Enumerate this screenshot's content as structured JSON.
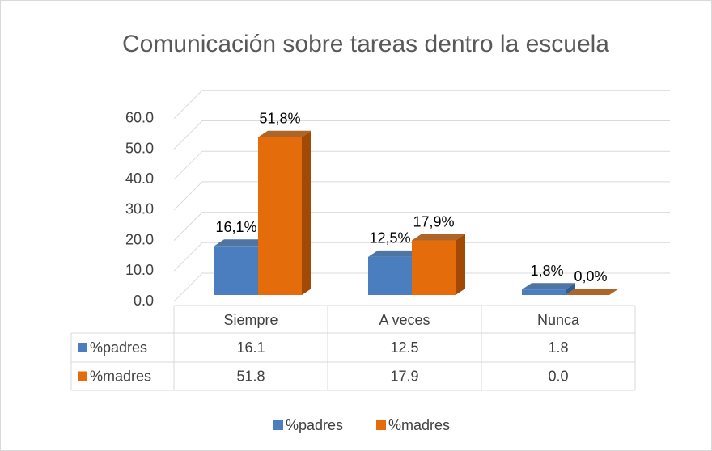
{
  "chart_data": {
    "type": "bar3d",
    "title": "Comunicación sobre  tareas dentro la escuela",
    "categories": [
      "Siempre",
      "A veces",
      "Nunca"
    ],
    "series": [
      {
        "name": "%padres",
        "color": "#4a7ebf",
        "side": "#2f5d94",
        "values": [
          16.1,
          12.5,
          1.8
        ],
        "value_labels": [
          "16,1%",
          "12,5%",
          "1,8%"
        ],
        "table_labels": [
          "16.1",
          "12.5",
          "1.8"
        ]
      },
      {
        "name": "%madres",
        "color": "#e46c0a",
        "side": "#a04a05",
        "values": [
          51.8,
          17.9,
          0.0
        ],
        "value_labels": [
          "51,8%",
          "17,9%",
          "0,0%"
        ],
        "table_labels": [
          "51.8",
          "17.9",
          "0.0"
        ]
      }
    ],
    "ylim": [
      0,
      60
    ],
    "yticks": [
      {
        "value": 0,
        "label": "0.0"
      },
      {
        "value": 10,
        "label": "10.0"
      },
      {
        "value": 20,
        "label": "20.0"
      },
      {
        "value": 30,
        "label": "30.0"
      },
      {
        "value": 40,
        "label": "40.0"
      },
      {
        "value": 50,
        "label": "50.0"
      },
      {
        "value": 60,
        "label": "60.0"
      }
    ],
    "grid": true,
    "legend": "bottom"
  }
}
